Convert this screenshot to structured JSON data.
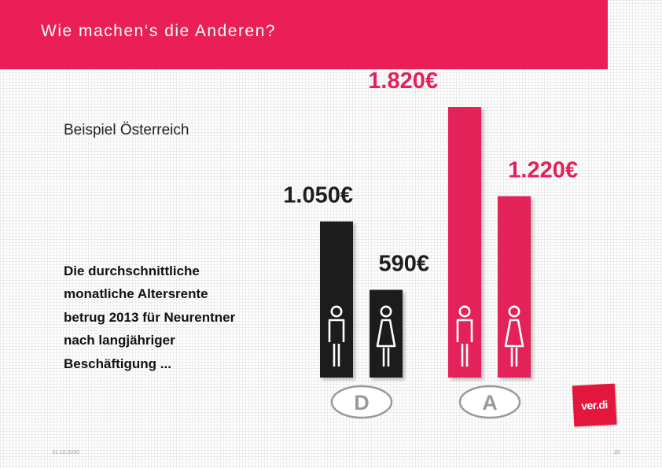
{
  "header": {
    "title": "Wie machen‘s die Anderen?"
  },
  "subtitle": "Beispiel Österreich",
  "description": {
    "lines": [
      "Die durchschnittliche",
      "monatliche Altersrente",
      "betrug 2013 für Neurentner",
      "nach langjähriger",
      "Beschäftigung ..."
    ]
  },
  "footer": {
    "date": "31.10.2020",
    "page": "20"
  },
  "logo": {
    "text": "ver.di"
  },
  "colors": {
    "brand": "#ea1f57",
    "germany": "#1d1c1f",
    "austria": "#e3215a"
  },
  "chart_data": {
    "type": "bar",
    "unit": "€",
    "groups": [
      {
        "label": "D",
        "color": "#1d1c1f",
        "bars": [
          {
            "icon": "man-icon",
            "value": 1050,
            "label": "1.050€"
          },
          {
            "icon": "woman-icon",
            "value": 590,
            "label": "590€"
          }
        ]
      },
      {
        "label": "A",
        "color": "#e3215a",
        "bars": [
          {
            "icon": "man-icon",
            "value": 1820,
            "label": "1.820€"
          },
          {
            "icon": "woman-icon",
            "value": 1220,
            "label": "1.220€"
          }
        ]
      }
    ]
  }
}
